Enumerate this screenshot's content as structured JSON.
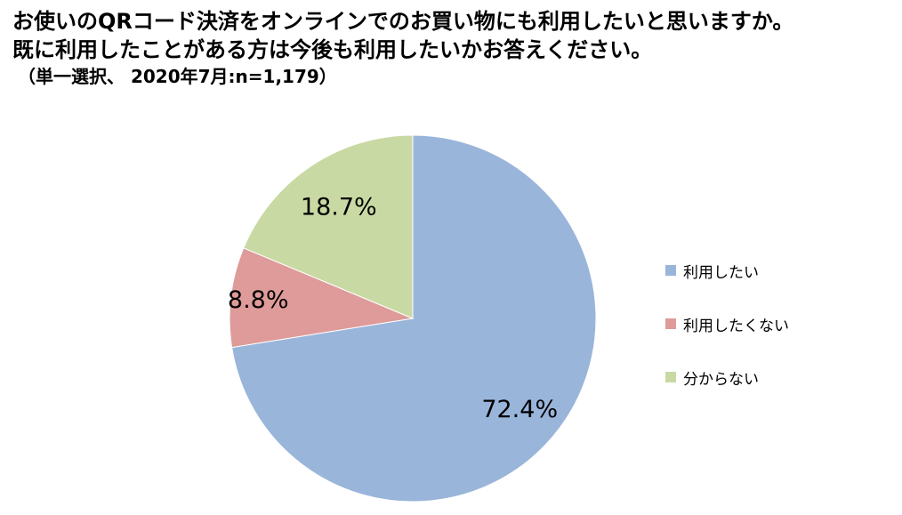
{
  "title": {
    "line1": "お使いのQRコード決済をオンラインでのお買い物にも利用したいと思いますか。",
    "line2": "既に利用したことがある方は今後も利用したいかお答えください。",
    "subtitle": "（単一選択、 2020年7月:n=1,179）"
  },
  "chart_data": {
    "type": "pie",
    "title": "お使いのQRコード決済をオンラインでのお買い物にも利用したいと思いますか。既に利用したことがある方は今後も利用したいかお答えください。",
    "subtitle": "（単一選択、 2020年7月:n=1,179）",
    "start_angle": "12 o'clock",
    "direction": "clockwise",
    "legend_position": "right",
    "slices": [
      {
        "name": "利用したい",
        "value": 72.4,
        "label": "72.4%",
        "color": "#9ab5da"
      },
      {
        "name": "利用したくない",
        "value": 8.8,
        "label": "8.8%",
        "color": "#de9b9a"
      },
      {
        "name": "分からない",
        "value": 18.7,
        "label": "18.7%",
        "color": "#c9d9a3"
      }
    ]
  }
}
